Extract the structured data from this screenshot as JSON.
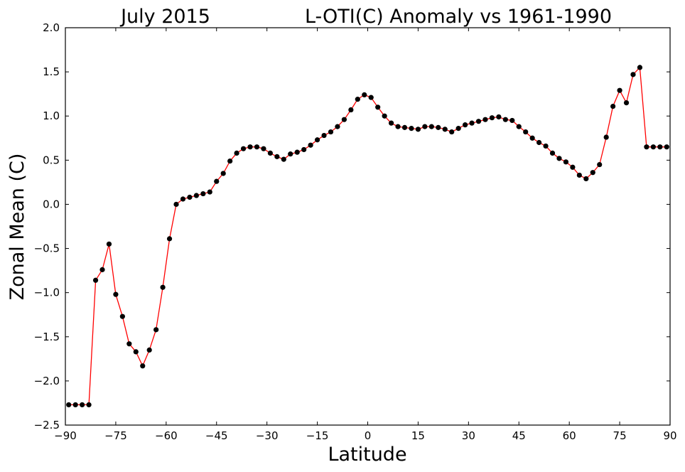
{
  "chart_data": {
    "type": "line",
    "title_left": "July 2015",
    "title_right": "L-OTI(C) Anomaly vs 1961-1990",
    "xlabel": "Latitude",
    "ylabel": "Zonal Mean (C)",
    "xlim": [
      -90,
      90
    ],
    "ylim": [
      -2.5,
      2.0
    ],
    "xticks": [
      -90,
      -75,
      -60,
      -45,
      -30,
      -15,
      0,
      15,
      30,
      45,
      60,
      75,
      90
    ],
    "xtick_labels": [
      "−90",
      "−75",
      "−60",
      "−45",
      "−30",
      "−15",
      "0",
      "15",
      "30",
      "45",
      "60",
      "75",
      "90"
    ],
    "yticks": [
      -2.5,
      -2.0,
      -1.5,
      -1.0,
      -0.5,
      0.0,
      0.5,
      1.0,
      1.5,
      2.0
    ],
    "ytick_labels": [
      "−2.5",
      "−2.0",
      "−1.5",
      "−1.0",
      "−0.5",
      "0.0",
      "0.5",
      "1.0",
      "1.5",
      "2.0"
    ],
    "grid": false,
    "line_color": "#ff0000",
    "marker_color": "#000000",
    "x": [
      -89,
      -87,
      -85,
      -83,
      -81,
      -79,
      -77,
      -75,
      -73,
      -71,
      -69,
      -67,
      -65,
      -63,
      -61,
      -59,
      -57,
      -55,
      -53,
      -51,
      -49,
      -47,
      -45,
      -43,
      -41,
      -39,
      -37,
      -35,
      -33,
      -31,
      -29,
      -27,
      -25,
      -23,
      -21,
      -19,
      -17,
      -15,
      -13,
      -11,
      -9,
      -7,
      -5,
      -3,
      -1,
      1,
      3,
      5,
      7,
      9,
      11,
      13,
      15,
      17,
      19,
      21,
      23,
      25,
      27,
      29,
      31,
      33,
      35,
      37,
      39,
      41,
      43,
      45,
      47,
      49,
      51,
      53,
      55,
      57,
      59,
      61,
      63,
      65,
      67,
      69,
      71,
      73,
      75,
      77,
      79,
      81,
      83,
      85,
      87,
      89
    ],
    "y": [
      -2.27,
      -2.27,
      -2.27,
      -2.27,
      -0.86,
      -0.74,
      -0.45,
      -1.02,
      -1.27,
      -1.58,
      -1.67,
      -1.83,
      -1.65,
      -1.42,
      -0.94,
      -0.39,
      0.0,
      0.06,
      0.08,
      0.1,
      0.12,
      0.14,
      0.26,
      0.35,
      0.49,
      0.58,
      0.63,
      0.65,
      0.65,
      0.63,
      0.58,
      0.54,
      0.51,
      0.57,
      0.59,
      0.62,
      0.67,
      0.73,
      0.78,
      0.82,
      0.88,
      0.96,
      1.07,
      1.19,
      1.24,
      1.21,
      1.1,
      1.0,
      0.92,
      0.88,
      0.87,
      0.86,
      0.85,
      0.88,
      0.88,
      0.87,
      0.85,
      0.82,
      0.86,
      0.9,
      0.92,
      0.94,
      0.96,
      0.98,
      0.99,
      0.96,
      0.95,
      0.88,
      0.82,
      0.75,
      0.7,
      0.66,
      0.58,
      0.52,
      0.48,
      0.42,
      0.33,
      0.29,
      0.36,
      0.45,
      0.76,
      1.11,
      1.29,
      1.15,
      1.47,
      1.55,
      0.65,
      0.65,
      0.65,
      0.65
    ]
  }
}
